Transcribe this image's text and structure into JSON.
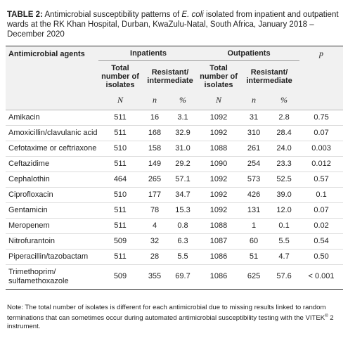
{
  "caption": {
    "label": "TABLE 2:",
    "text_before": " Antimicrobial susceptibility patterns of ",
    "organism": "E. coli",
    "text_after": " isolated from inpatient and outpatient wards at the RK Khan Hospital, Durban, KwaZulu-Natal, South Africa, January 2018 – December 2020"
  },
  "table": {
    "headers": [
      "Antimicrobial agents",
      "Inpatients",
      "Outpatients",
      "p"
    ],
    "subheaders": [
      "Total number of isolates",
      "Resistant/ intermediate",
      "Total number of isolates",
      "Resistant/ intermediate"
    ],
    "symbols": [
      "N",
      "n",
      "%",
      "N",
      "n",
      "%"
    ],
    "rows": [
      [
        "Amikacin",
        "511",
        "16",
        "3.1",
        "1092",
        "31",
        "2.8",
        "0.75"
      ],
      [
        "Amoxicillin/clavulanic acid",
        "511",
        "168",
        "32.9",
        "1092",
        "310",
        "28.4",
        "0.07"
      ],
      [
        "Cefotaxime or ceftriaxone",
        "510",
        "158",
        "31.0",
        "1088",
        "261",
        "24.0",
        "0.003"
      ],
      [
        "Ceftazidime",
        "511",
        "149",
        "29.2",
        "1090",
        "254",
        "23.3",
        "0.012"
      ],
      [
        "Cephalothin",
        "464",
        "265",
        "57.1",
        "1092",
        "573",
        "52.5",
        "0.57"
      ],
      [
        "Ciprofloxacin",
        "510",
        "177",
        "34.7",
        "1092",
        "426",
        "39.0",
        "0.1"
      ],
      [
        "Gentamicin",
        "511",
        "78",
        "15.3",
        "1092",
        "131",
        "12.0",
        "0.07"
      ],
      [
        "Meropenem",
        "511",
        "4",
        "0.8",
        "1088",
        "1",
        "0.1",
        "0.02"
      ],
      [
        "Nitrofurantoin",
        "509",
        "32",
        "6.3",
        "1087",
        "60",
        "5.5",
        "0.54"
      ],
      [
        "Piperacillin/tazobactam",
        "511",
        "28",
        "5.5",
        "1086",
        "51",
        "4.7",
        "0.50"
      ],
      [
        "Trimethoprim/ sulfamethoxazole",
        "509",
        "355",
        "69.7",
        "1086",
        "625",
        "57.6",
        "< 0.001"
      ]
    ]
  },
  "note": {
    "text_before": "Note: The total number of isolates is different for each antimicrobial due to missing results linked to random terminations that can sometimes occur during automated antimicrobial susceptibility testing with the VITEK",
    "superscript": "®",
    "text_after": " 2 instrument."
  }
}
